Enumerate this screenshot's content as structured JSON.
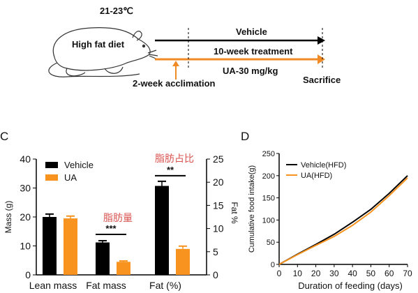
{
  "protocol": {
    "temperature": "21-23℃",
    "diet_label": "High fat diet",
    "vehicle_label": "Vehicle",
    "treatment_label": "10-week treatment",
    "dose_label": "UA-30 mg/kg",
    "acclimation_label": "2-week acclimation",
    "sacrifice_label": "Sacrifice",
    "vehicle_color": "#000000",
    "treatment_color": "#f08a24"
  },
  "panel_c": {
    "letter": "C",
    "annotation_fat_mass": "脂肪量",
    "annotation_fat_pct": "脂肪占比",
    "sig_fat_mass": "***",
    "sig_fat_pct": "**",
    "annotation_color": "#d9534f"
  },
  "panel_d": {
    "letter": "D"
  },
  "chart_data": [
    {
      "type": "bar",
      "categories": [
        "Lean mass",
        "Fat mass",
        "Fat (%)"
      ],
      "series": [
        {
          "name": "Vehicle",
          "color": "#000000",
          "values": [
            20.0,
            11.2,
            19.2
          ],
          "errors": [
            1.0,
            0.6,
            1.0
          ]
        },
        {
          "name": "UA",
          "color": "#f7931e",
          "values": [
            19.5,
            4.5,
            5.6
          ],
          "errors": [
            0.8,
            0.3,
            0.6
          ]
        }
      ],
      "axis_note": "Lean mass and Fat mass on left axis (g); Fat (%) on right axis (%)",
      "ylabel": "Mass (g)",
      "ylim": [
        0,
        40
      ],
      "yticks": [
        0,
        10,
        20,
        30,
        40
      ],
      "y2label": "Fat %",
      "y2lim": [
        0,
        25
      ],
      "y2ticks": [
        0,
        5,
        10,
        15,
        20,
        25
      ],
      "legend": "top-left"
    },
    {
      "type": "line",
      "xlabel": "Duration of feeding (days)",
      "ylabel": "Cumulative food intake(g)",
      "xlim": [
        0,
        70
      ],
      "xticks": [
        0,
        10,
        20,
        30,
        40,
        50,
        60,
        70
      ],
      "ylim": [
        0,
        250
      ],
      "yticks": [
        0,
        50,
        100,
        150,
        200,
        250
      ],
      "legend": "top-left",
      "series": [
        {
          "name": "Vehicle(HFD)",
          "color": "#000000",
          "x": [
            0,
            10,
            20,
            30,
            40,
            50,
            60,
            70
          ],
          "y": [
            0,
            23,
            45,
            68,
            95,
            124,
            160,
            200
          ]
        },
        {
          "name": "UA(HFD)",
          "color": "#f7931e",
          "x": [
            0,
            10,
            20,
            30,
            40,
            50,
            60,
            70
          ],
          "y": [
            0,
            22,
            43,
            63,
            88,
            118,
            155,
            195
          ]
        }
      ]
    }
  ]
}
